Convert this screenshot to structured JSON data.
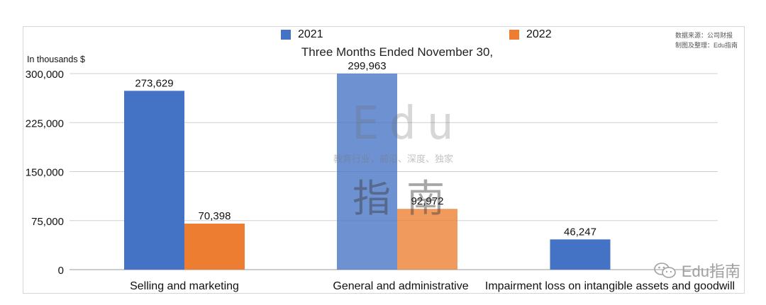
{
  "chart_data": {
    "type": "bar",
    "title": "Three Months Ended November 30,",
    "ylabel": "In thousands $",
    "categories": [
      "Selling and marketing",
      "General and administrative",
      "Impairment loss on intangible assets and goodwill"
    ],
    "series": [
      {
        "name": "2021",
        "color": "#4472C4",
        "values": [
          273629,
          299963,
          46247
        ]
      },
      {
        "name": "2022",
        "color": "#ED7D31",
        "values": [
          70398,
          92972,
          null
        ]
      }
    ],
    "data_labels": {
      "2021": [
        "273,629",
        "299,963",
        "46,247"
      ],
      "2022": [
        "70,398",
        "92,972",
        ""
      ]
    },
    "ylim": [
      0,
      300000
    ],
    "yticks": [
      0,
      75000,
      150000,
      225000,
      300000
    ],
    "ytick_labels": [
      "0",
      "75,000",
      "150,000",
      "225,000",
      "300,000"
    ],
    "grid": true,
    "legend": "top"
  },
  "source_note": {
    "line1": "数据来源：公司财报",
    "line2": "制图及整理：Edu指南"
  },
  "watermark": {
    "edu": "Edu",
    "tagline": "教育行业，前沿、深度、独家",
    "cn": "指南"
  },
  "brand": {
    "wechat_icon": "wechat-icon",
    "label": "Edu指南"
  }
}
